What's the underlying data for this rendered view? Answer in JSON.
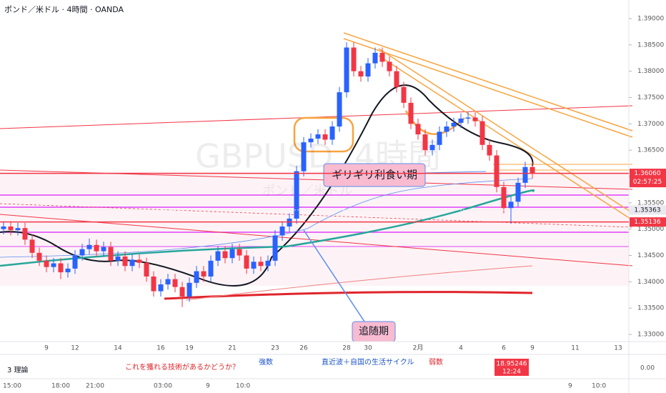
{
  "chart_data": {
    "type": "candlestick",
    "title": "ポンド／米ドル · 4時間 · OANDA",
    "watermark": "GBPUSD, 4時間",
    "watermark_sub": "ポンド／米ドル",
    "annotations": [
      "ギリギリ利食い期",
      "追随期"
    ],
    "up_color": "#2962ff",
    "down_color": "#f23645",
    "categories": [
      null,
      null,
      null,
      null,
      null,
      null,
      "9",
      null,
      null,
      null,
      "12",
      null,
      null,
      null,
      null,
      null,
      "14",
      null,
      null,
      null,
      null,
      null,
      "16",
      null,
      null,
      null,
      "19",
      null,
      null,
      null,
      null,
      null,
      "21",
      null,
      null,
      null,
      null,
      null,
      "23",
      null,
      null,
      null,
      "26",
      null,
      null,
      null,
      null,
      null,
      "28",
      null,
      null,
      "30",
      null,
      null,
      null,
      null,
      null,
      null,
      "2月",
      null,
      null,
      null,
      null,
      null,
      "4",
      null,
      null,
      null,
      null,
      null,
      "6",
      null,
      null,
      null,
      "9",
      null,
      null,
      null,
      null,
      null,
      "11",
      null,
      null,
      null,
      null,
      null,
      "13"
    ],
    "open": [
      1.35,
      1.3505,
      1.3498,
      1.3502,
      1.348,
      1.3455,
      1.344,
      1.3428,
      1.3435,
      1.3418,
      1.3425,
      1.345,
      1.3462,
      1.347,
      1.3458,
      1.3466,
      1.344,
      1.3448,
      1.343,
      1.3442,
      1.3436,
      1.341,
      1.3382,
      1.3395,
      1.3405,
      1.339,
      1.3372,
      1.3398,
      1.342,
      1.341,
      1.344,
      1.3458,
      1.3445,
      1.3462,
      1.345,
      1.3425,
      1.3438,
      1.343,
      1.344,
      1.3488,
      1.3505,
      1.352,
      1.361,
      1.3665,
      1.3672,
      1.368,
      1.367,
      1.3695,
      1.376,
      1.3845,
      1.38,
      1.379,
      1.3815,
      1.3835,
      1.3818,
      1.38,
      1.377,
      1.374,
      1.37,
      1.368,
      1.365,
      1.366,
      1.3685,
      1.3695,
      1.3702,
      1.371,
      1.3712,
      1.3705,
      1.366,
      1.364,
      1.358,
      1.354,
      1.3552,
      1.3588,
      1.3618,
      null,
      null,
      null,
      null,
      null,
      null,
      null,
      null,
      null,
      null,
      null,
      null
    ],
    "high": [
      1.3515,
      1.3515,
      1.3512,
      1.3512,
      1.349,
      1.3465,
      1.345,
      1.3445,
      1.3445,
      1.3435,
      1.346,
      1.3472,
      1.3482,
      1.348,
      1.3476,
      1.3476,
      1.3458,
      1.3458,
      1.3452,
      1.3452,
      1.3446,
      1.342,
      1.3405,
      1.3415,
      1.3415,
      1.34,
      1.3408,
      1.343,
      1.343,
      1.345,
      1.3468,
      1.3468,
      1.3472,
      1.3472,
      1.346,
      1.3448,
      1.3448,
      1.345,
      1.3498,
      1.3515,
      1.353,
      1.362,
      1.3675,
      1.3682,
      1.369,
      1.369,
      1.3705,
      1.377,
      1.3855,
      1.3855,
      1.381,
      1.3825,
      1.3845,
      1.3845,
      1.3828,
      1.381,
      1.378,
      1.375,
      1.371,
      1.369,
      1.367,
      1.3695,
      1.3705,
      1.3712,
      1.372,
      1.3722,
      1.3722,
      1.3715,
      1.367,
      1.365,
      1.359,
      1.3562,
      1.3598,
      1.3628,
      1.3628,
      null,
      null,
      null,
      null,
      null,
      null,
      null,
      null,
      null,
      null,
      null,
      null
    ],
    "low": [
      1.349,
      1.3488,
      1.3488,
      1.347,
      1.3445,
      1.343,
      1.3418,
      1.3418,
      1.3405,
      1.3408,
      1.3415,
      1.344,
      1.3452,
      1.3448,
      1.3448,
      1.343,
      1.343,
      1.342,
      1.342,
      1.3426,
      1.34,
      1.3372,
      1.3372,
      1.3385,
      1.338,
      1.3352,
      1.3362,
      1.3388,
      1.34,
      1.34,
      1.343,
      1.3435,
      1.3435,
      1.344,
      1.3415,
      1.3415,
      1.342,
      1.342,
      1.343,
      1.3478,
      1.3495,
      1.351,
      1.36,
      1.3655,
      1.3662,
      1.366,
      1.366,
      1.3685,
      1.375,
      1.379,
      1.378,
      1.378,
      1.3805,
      1.3808,
      1.379,
      1.376,
      1.373,
      1.369,
      1.367,
      1.364,
      1.364,
      1.365,
      1.3675,
      1.3685,
      1.3692,
      1.37,
      1.3695,
      1.365,
      1.363,
      1.357,
      1.353,
      1.351,
      1.3542,
      1.3578,
      1.3596,
      null,
      null,
      null,
      null,
      null,
      null,
      null,
      null,
      null,
      null,
      null,
      null
    ],
    "close": [
      1.3505,
      1.3498,
      1.3502,
      1.348,
      1.3455,
      1.344,
      1.3428,
      1.3435,
      1.3418,
      1.3425,
      1.345,
      1.3462,
      1.347,
      1.3458,
      1.3466,
      1.344,
      1.3448,
      1.343,
      1.3442,
      1.3436,
      1.341,
      1.3382,
      1.3395,
      1.3405,
      1.339,
      1.3372,
      1.3398,
      1.342,
      1.341,
      1.344,
      1.3458,
      1.3445,
      1.3462,
      1.345,
      1.3425,
      1.3438,
      1.343,
      1.344,
      1.3488,
      1.3505,
      1.352,
      1.361,
      1.3665,
      1.3672,
      1.368,
      1.367,
      1.3695,
      1.376,
      1.3845,
      1.38,
      1.379,
      1.3815,
      1.3835,
      1.3818,
      1.38,
      1.377,
      1.374,
      1.37,
      1.368,
      1.365,
      1.366,
      1.3685,
      1.3695,
      1.3702,
      1.371,
      1.3712,
      1.3705,
      1.366,
      1.364,
      1.358,
      1.354,
      1.3552,
      1.3588,
      1.3618,
      1.3606,
      null,
      null,
      null,
      null,
      null,
      null,
      null,
      null,
      null,
      null,
      null,
      null
    ],
    "ylim": [
      1.33,
      1.39
    ],
    "yticks": [
      {
        "value": 1.33,
        "label": "1.33000"
      },
      {
        "value": 1.335,
        "label": "1.33500"
      },
      {
        "value": 1.34,
        "label": "1.34000"
      },
      {
        "value": 1.345,
        "label": "1.34500"
      },
      {
        "value": 1.35,
        "label": "1.35000"
      },
      {
        "value": 1.355,
        "label": "1.35500"
      },
      {
        "value": 1.36,
        "label": "1.36000"
      },
      {
        "value": 1.365,
        "label": "1.36500"
      },
      {
        "value": 1.37,
        "label": "1.37000"
      },
      {
        "value": 1.375,
        "label": "1.37500"
      },
      {
        "value": 1.38,
        "label": "1.38000"
      },
      {
        "value": 1.385,
        "label": "1.38500"
      },
      {
        "value": 1.39,
        "label": "1.39000"
      }
    ],
    "price_labels": [
      {
        "value": 1.3606,
        "label": "1.36060",
        "sub": "02:57:25",
        "color": "#f23645"
      },
      {
        "value": 1.35363,
        "label": "1.35363",
        "color": "#e9e9ef"
      },
      {
        "value": 1.35136,
        "label": "1.35136",
        "color": "#f23645"
      }
    ]
  },
  "indicator_pane": {
    "texts": [
      "3 理論",
      "これを獲れる技術があるかどうか？",
      "強数",
      "直近波＋自国の生活サイクル",
      "弱数",
      "0.00"
    ],
    "value_box": "18.95246",
    "value_box_sub": "12:24"
  },
  "time_axis": [
    "15:00",
    "18:00",
    "21:00",
    "03:00",
    "9",
    "10:0",
    "9",
    "10:0"
  ]
}
